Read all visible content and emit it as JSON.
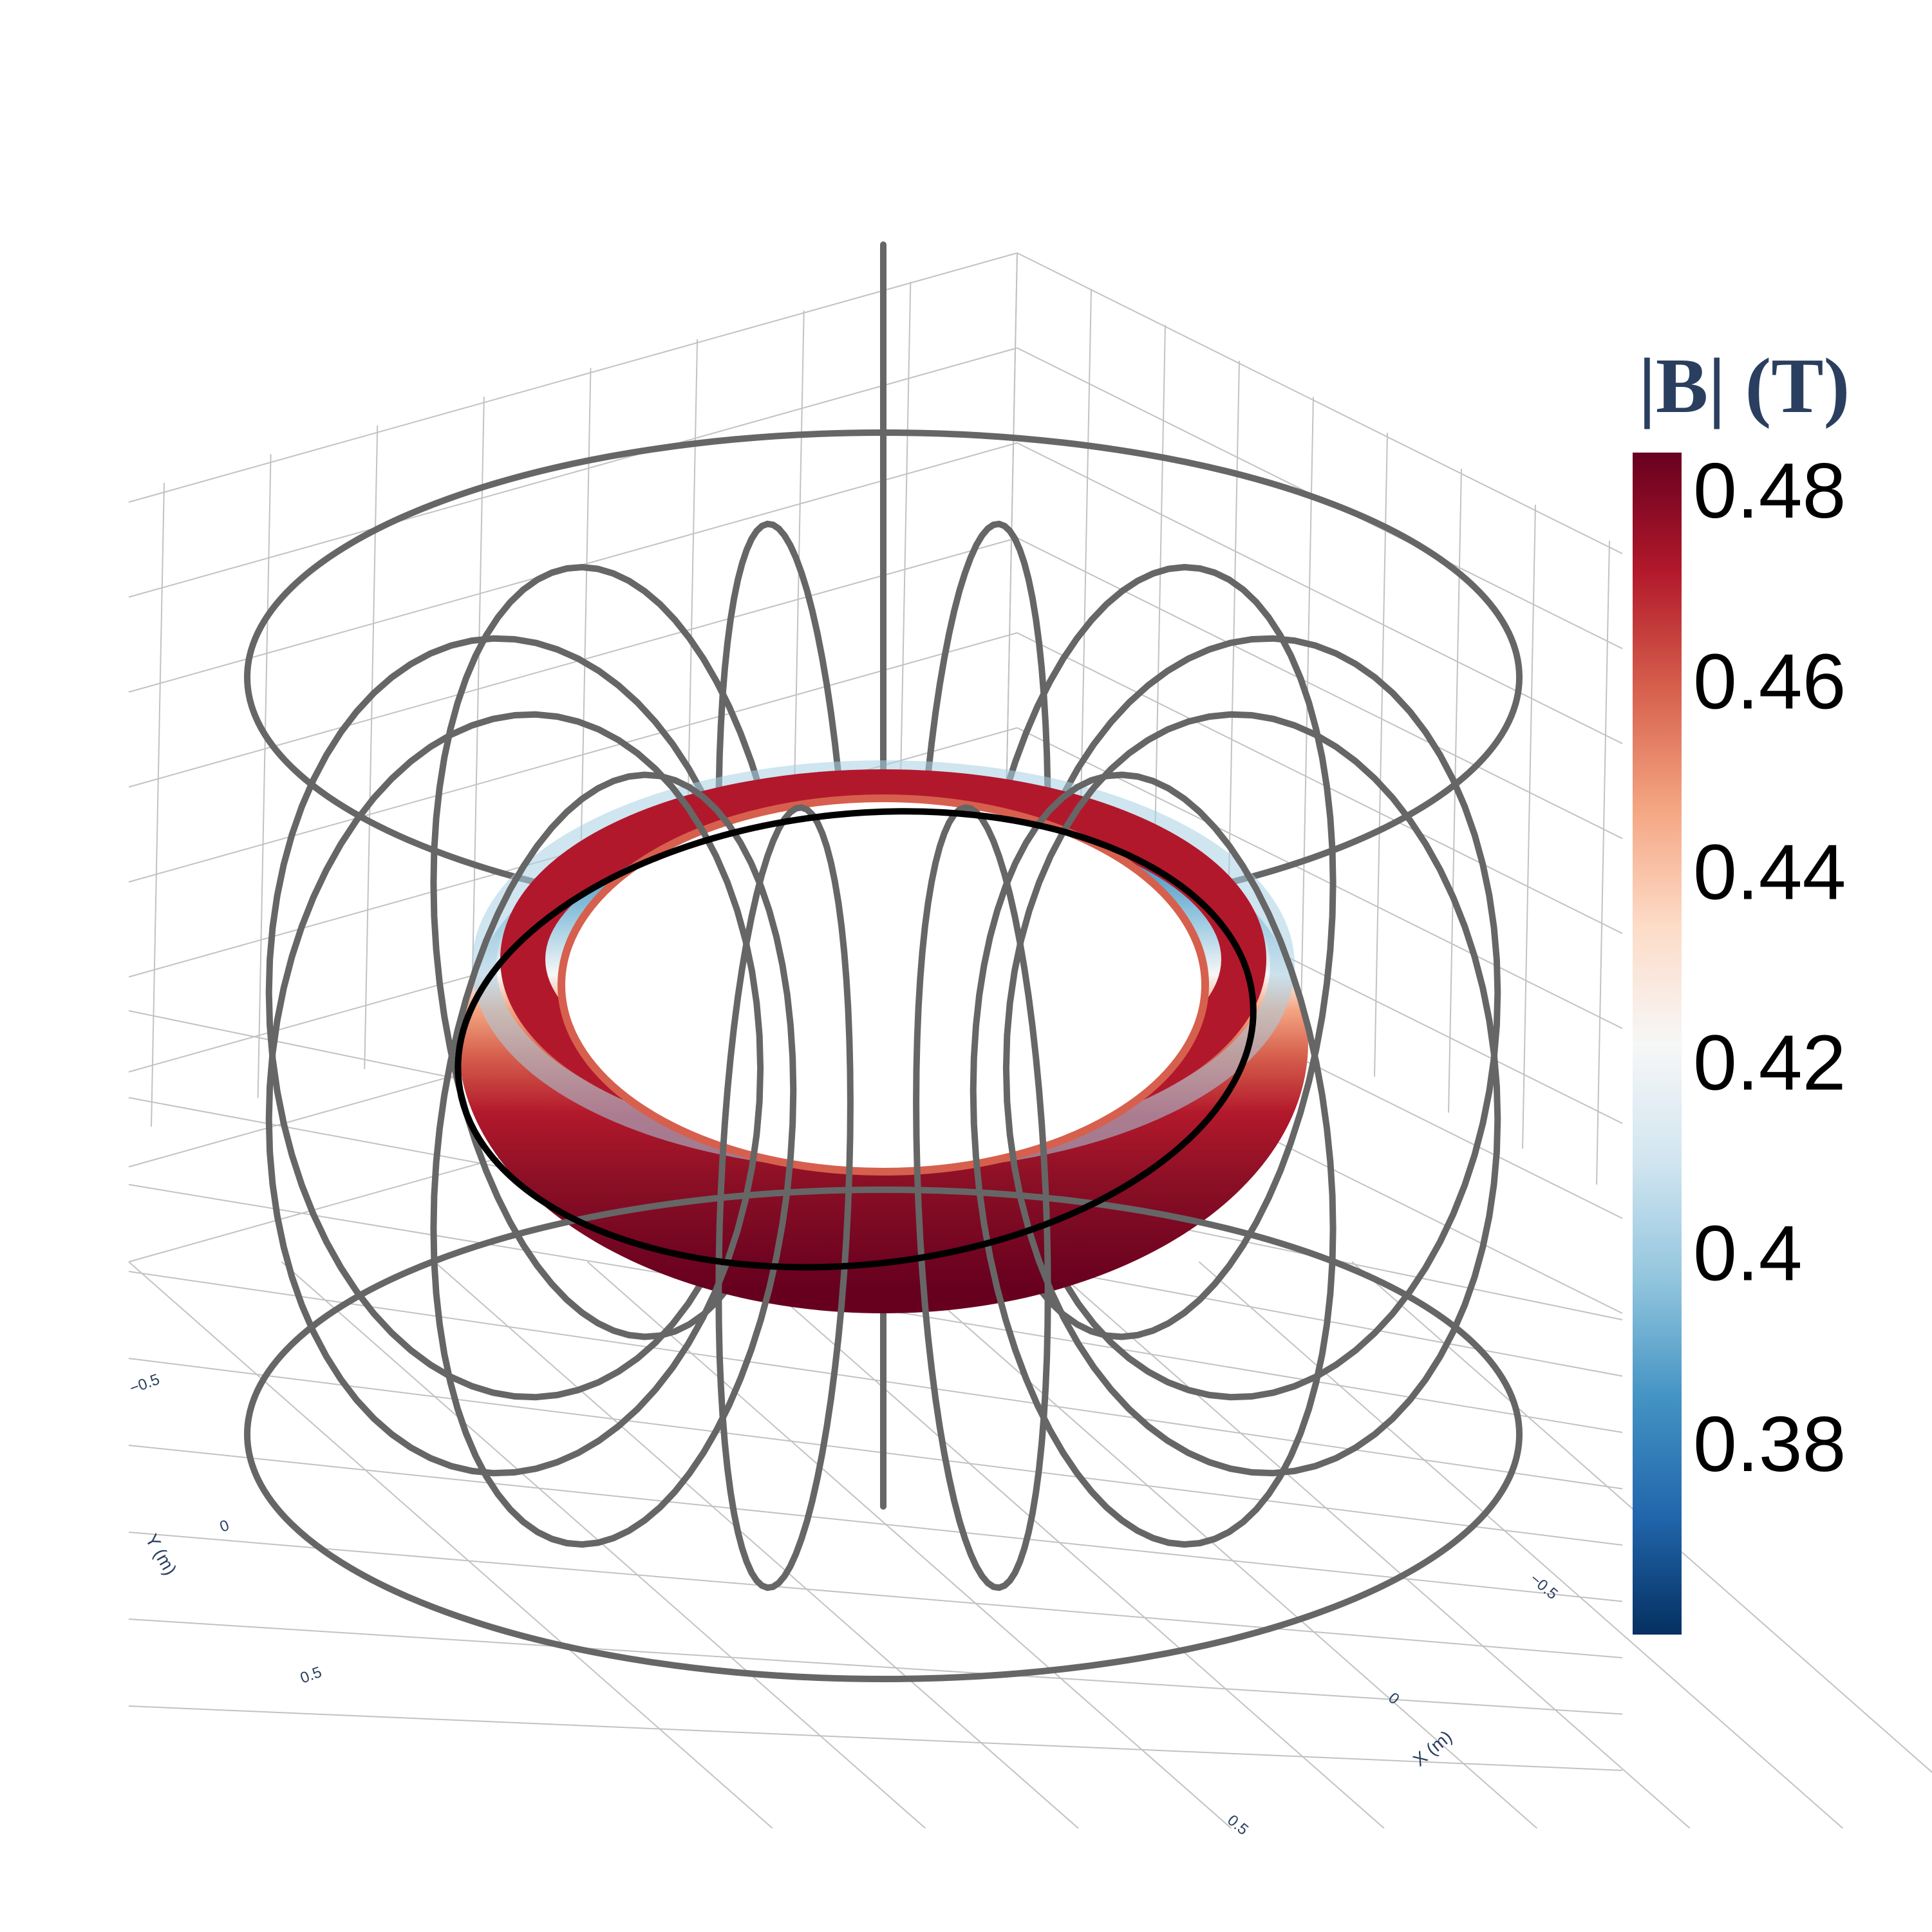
{
  "chart_data": {
    "type": "3d-surface",
    "colorbar": {
      "title": "|B| (T)",
      "ticks": [
        0.48,
        0.46,
        0.44,
        0.42,
        0.4,
        0.38
      ],
      "tick_labels": [
        "0.48",
        "0.46",
        "0.44",
        "0.42",
        "0.4",
        "0.38"
      ],
      "range": [
        0.36,
        0.484
      ],
      "colorscale": [
        "#053061",
        "#2166ac",
        "#4393c3",
        "#92c5de",
        "#d1e5f0",
        "#f7f7f7",
        "#fddbc7",
        "#f4a582",
        "#d6604d",
        "#b2182b",
        "#67001f"
      ]
    },
    "axes": {
      "x": {
        "title": "X (m)",
        "ticks": [
          -0.5,
          0,
          0.5
        ],
        "tick_labels": [
          "−0.5",
          "0",
          "0.5"
        ]
      },
      "y": {
        "title": "Y (m)",
        "ticks": [
          -0.5,
          0,
          0.5
        ],
        "tick_labels": [
          "−0.5",
          "0",
          "0.5"
        ]
      },
      "grid": true
    },
    "series": [
      {
        "kind": "surface",
        "shape": "torus"
      },
      {
        "kind": "lines",
        "shape": "toroidal field coils",
        "count": 12,
        "color": "#666666"
      },
      {
        "kind": "lines",
        "shape": "poloidal field coils",
        "count": 3,
        "color": "#666666"
      },
      {
        "kind": "lines",
        "shape": "central column",
        "count": 1,
        "color": "#666666"
      },
      {
        "kind": "lines",
        "shape": "magnetic axis",
        "count": 1,
        "color": "#000000"
      }
    ]
  },
  "colors": {
    "coil": "#666666",
    "axis_line": "#000000",
    "grid": "#c2c2c2",
    "axis_text": "#2a3f5f",
    "colorbar_title": "#2a3f5f"
  }
}
